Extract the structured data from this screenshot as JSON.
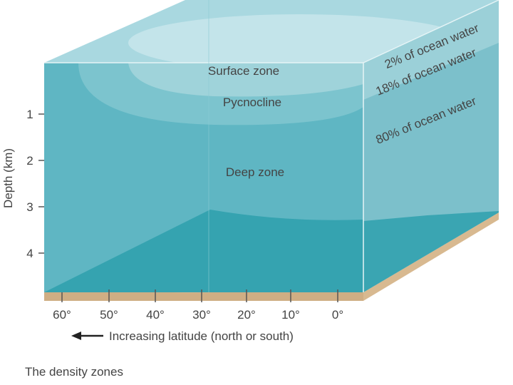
{
  "depth_axis": {
    "title": "Depth (km)",
    "ticks": [
      "1",
      "2",
      "3",
      "4"
    ]
  },
  "latitude_axis": {
    "title": "Increasing latitude (north or south)",
    "ticks": [
      "60°",
      "50°",
      "40°",
      "30°",
      "20°",
      "10°",
      "0°"
    ]
  },
  "zones": [
    {
      "label": "Surface zone",
      "share": "2% of ocean water"
    },
    {
      "label": "Pycnocline",
      "share": "18% of ocean water"
    },
    {
      "label": "Deep zone",
      "share": "80% of ocean water"
    }
  ],
  "caption": "The density zones"
}
